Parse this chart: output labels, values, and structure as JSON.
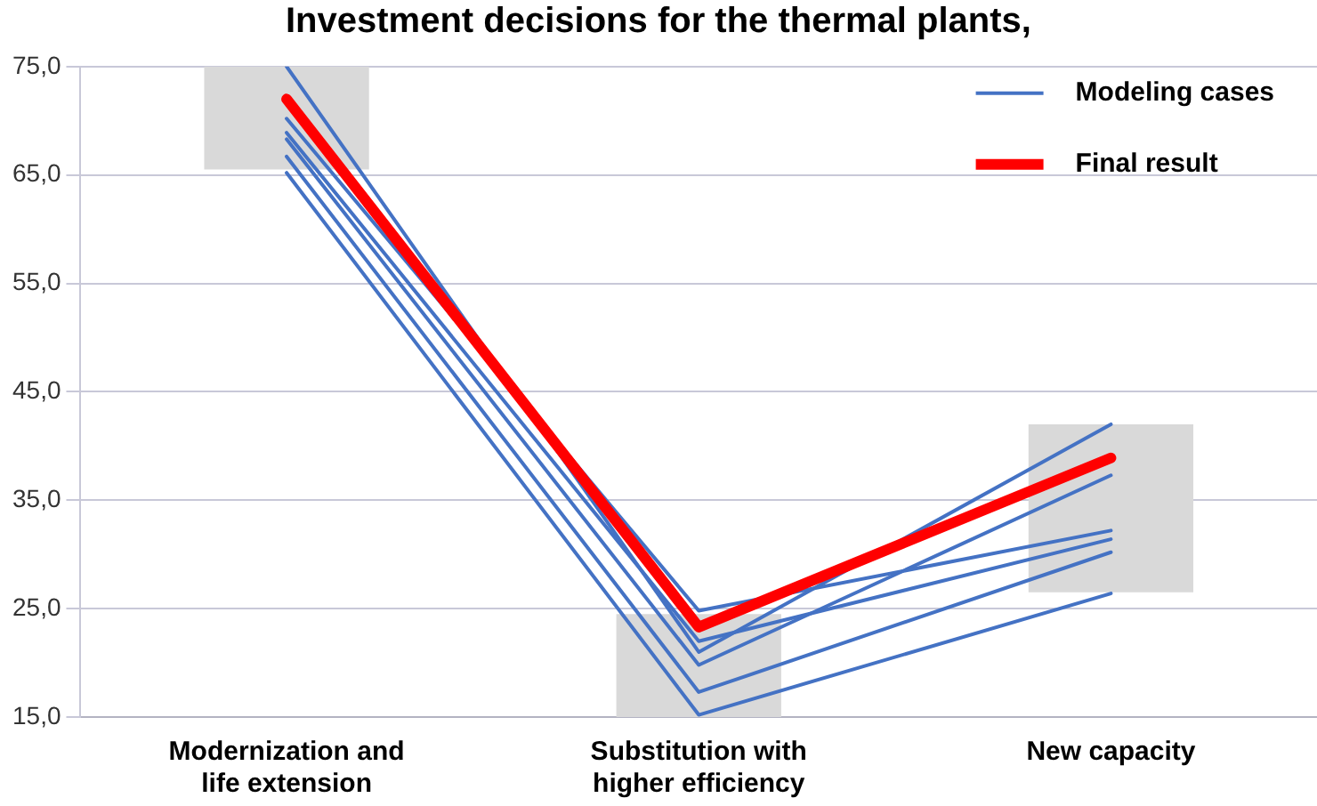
{
  "chart_data": {
    "type": "line",
    "title": "Investment decisions for the thermal plants,",
    "categories": [
      "Modernization and life extension",
      "Substitution with higher efficiency",
      "New capacity"
    ],
    "ylim": [
      15,
      75
    ],
    "yticks": [
      {
        "value": 15,
        "label": "15,0"
      },
      {
        "value": 25,
        "label": "25,0"
      },
      {
        "value": 35,
        "label": "35,0"
      },
      {
        "value": 45,
        "label": "45,0"
      },
      {
        "value": 55,
        "label": "55,0"
      },
      {
        "value": 65,
        "label": "65,0"
      },
      {
        "value": 75,
        "label": "75,0"
      }
    ],
    "grid": "y",
    "legend": "top right",
    "marker": "none",
    "line_style": "solid",
    "series": [
      {
        "type": "bar",
        "color": "#d9d9d9",
        "base": [
          65.5,
          15,
          26.5
        ],
        "values": [
          9.5,
          9.5,
          15.5
        ]
      },
      {
        "name": "Modeling cases",
        "color": "#4472c4",
        "values": [
          75,
          21.0,
          42.0
        ]
      },
      {
        "color": "#4472c4",
        "values": [
          70.2,
          24.8,
          32.2
        ]
      },
      {
        "color": "#4472c4",
        "values": [
          68.9,
          22.0,
          31.4
        ]
      },
      {
        "color": "#4472c4",
        "values": [
          68.3,
          19.8,
          37.3
        ]
      },
      {
        "color": "#4472c4",
        "values": [
          66.7,
          17.3,
          30.2
        ]
      },
      {
        "color": "#4472c4",
        "values": [
          65.2,
          15.2,
          26.4
        ]
      },
      {
        "name": "Final result",
        "color": "#ff0000",
        "values": [
          72.0,
          23.3,
          38.9
        ]
      }
    ]
  }
}
